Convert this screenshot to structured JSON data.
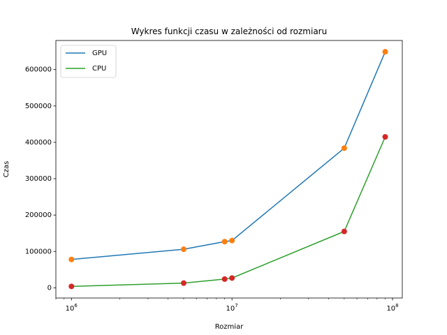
{
  "chart_data": {
    "type": "line",
    "title": "Wykres funkcji czasu w zależności od rozmiaru",
    "xlabel": "Rozmiar",
    "ylabel": "Czas",
    "xscale": "log",
    "xlim": [
      800000,
      115000000
    ],
    "ylim": [
      -28000,
      680000
    ],
    "x": [
      1000000,
      5000000,
      9000000,
      10000000,
      50000000,
      90000000
    ],
    "x_ticks": [
      {
        "value": 1000000,
        "base": "10",
        "exp": "6"
      },
      {
        "value": 10000000,
        "base": "10",
        "exp": "7"
      },
      {
        "value": 100000000,
        "base": "10",
        "exp": "8"
      }
    ],
    "y_ticks": [
      {
        "value": 0,
        "label": "0"
      },
      {
        "value": 100000,
        "label": "100000"
      },
      {
        "value": 200000,
        "label": "200000"
      },
      {
        "value": 300000,
        "label": "300000"
      },
      {
        "value": 400000,
        "label": "400000"
      },
      {
        "value": 500000,
        "label": "500000"
      },
      {
        "value": 600000,
        "label": "600000"
      }
    ],
    "series": [
      {
        "name": "GPU",
        "values": [
          78000,
          106000,
          127000,
          130000,
          384000,
          649000
        ],
        "line_color": "#1f77b4",
        "marker_color": "#ff7f0e"
      },
      {
        "name": "CPU",
        "values": [
          4000,
          13000,
          24000,
          27000,
          155000,
          415000
        ],
        "line_color": "#2ca02c",
        "marker_color": "#d62728"
      }
    ],
    "legend": "top-left",
    "grid": false
  }
}
